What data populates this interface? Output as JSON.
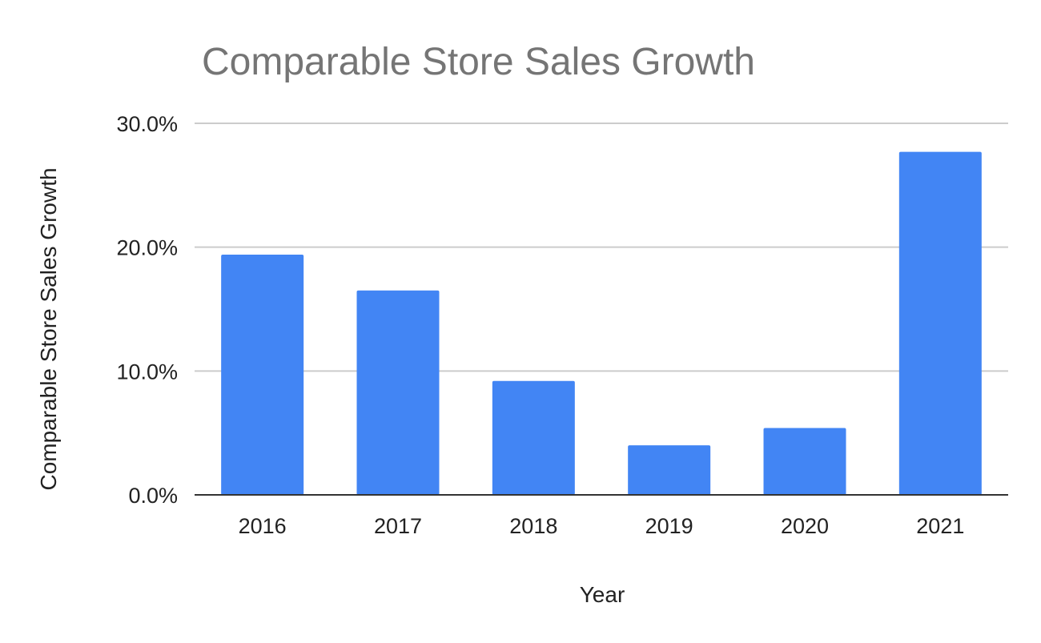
{
  "chart_data": {
    "type": "bar",
    "title": "Comparable Store Sales Growth",
    "xlabel": "Year",
    "ylabel": "Comparable Store Sales Growth",
    "categories": [
      "2016",
      "2017",
      "2018",
      "2019",
      "2020",
      "2021"
    ],
    "series": [
      {
        "values": [
          19.4,
          16.5,
          9.2,
          4.0,
          5.4,
          27.7
        ]
      }
    ],
    "ylim": [
      0,
      30
    ],
    "y_ticks": [
      "0.0%",
      "10.0%",
      "20.0%",
      "30.0%"
    ],
    "y_tick_values": [
      0,
      10,
      20,
      30
    ],
    "grid": true,
    "legend": "none",
    "colors": {
      "bar": "#4285f4",
      "title": "#757575",
      "gridline": "#cccccc",
      "baseline": "#333333"
    }
  }
}
